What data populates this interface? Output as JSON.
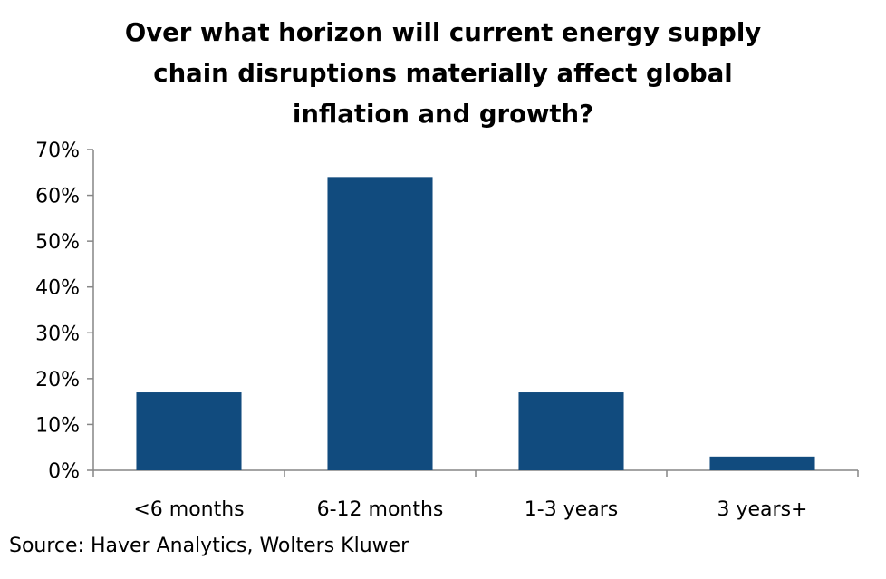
{
  "chart_data": {
    "type": "bar",
    "title": "Over what horizon will current energy supply\nchain disruptions materially affect global\ninflation and growth?",
    "categories": [
      "<6 months",
      "6-12 months",
      "1-3 years",
      "3 years+"
    ],
    "values": [
      0.17,
      0.64,
      0.17,
      0.03
    ],
    "ylim": [
      0,
      0.7
    ],
    "yticks": [
      0,
      0.1,
      0.2,
      0.3,
      0.4,
      0.5,
      0.6,
      0.7
    ],
    "ytick_labels": [
      "0%",
      "10%",
      "20%",
      "30%",
      "40%",
      "50%",
      "60%",
      "70%"
    ],
    "xlabel": "",
    "ylabel": "",
    "grid": false,
    "legend": "none",
    "bar_color": "#114b7e",
    "axis_color": "#868686"
  },
  "source": "Source: Haver Analytics, Wolters Kluwer"
}
